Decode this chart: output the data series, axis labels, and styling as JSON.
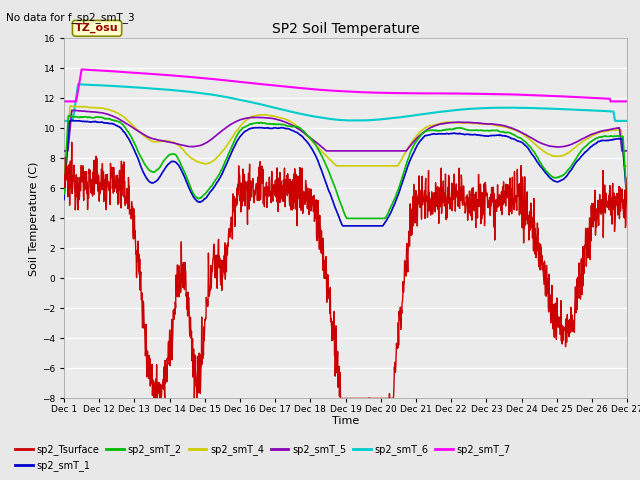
{
  "title": "SP2 Soil Temperature",
  "subtitle": "No data for f_sp2_smT_3",
  "xlabel": "Time",
  "ylabel": "Soil Temperature (C)",
  "ylim": [
    -8,
    16
  ],
  "yticks": [
    -8,
    -6,
    -4,
    -2,
    0,
    2,
    4,
    6,
    8,
    10,
    12,
    14,
    16
  ],
  "tz_label": "TZ_osu",
  "fig_bg": "#e8e8e8",
  "plot_bg": "#ebebeb",
  "grid_color": "#c8c8c8",
  "series_colors": {
    "sp2_Tsurface": "#cc0000",
    "sp2_smT_1": "#0000cc",
    "sp2_smT_2": "#00bb00",
    "sp2_smT_4": "#cccc00",
    "sp2_smT_5": "#8800bb",
    "sp2_smT_6": "#00cccc",
    "sp2_smT_7": "#ff00ff"
  },
  "xtick_labels": [
    "Dec 1",
    "Dec 12",
    "Dec 13",
    "Dec 14",
    "Dec 15",
    "Dec 16",
    "Dec 17",
    "Dec 18",
    "Dec 19",
    "Dec 20",
    "Dec 21",
    "Dec 22",
    "Dec 23",
    "Dec 24",
    "Dec 25",
    "Dec 26",
    "Dec 27"
  ],
  "n_points": 1600,
  "days": 16
}
